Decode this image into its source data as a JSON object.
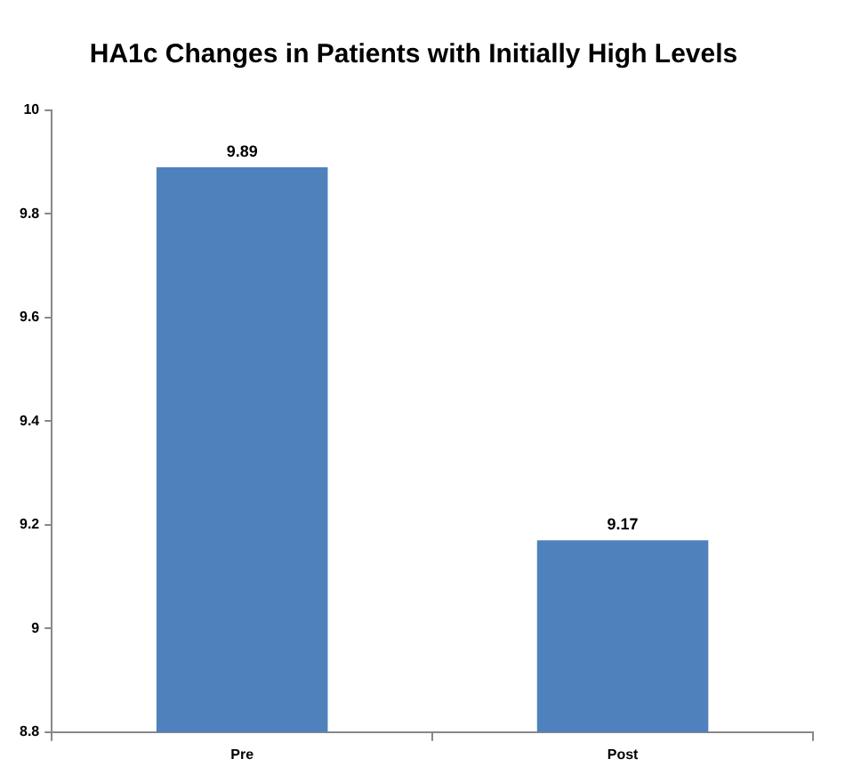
{
  "chart_data": {
    "type": "bar",
    "title": "HA1c Changes in Patients with Initially High Levels",
    "categories": [
      "Pre",
      "Post"
    ],
    "values": [
      9.89,
      9.17
    ],
    "color": "#4f81bd",
    "ylim": [
      8.8,
      10
    ],
    "yticks": [
      8.8,
      9,
      9.2,
      9.4,
      9.6,
      9.8,
      10
    ],
    "grid": false,
    "data_labels": true,
    "legend": false
  }
}
